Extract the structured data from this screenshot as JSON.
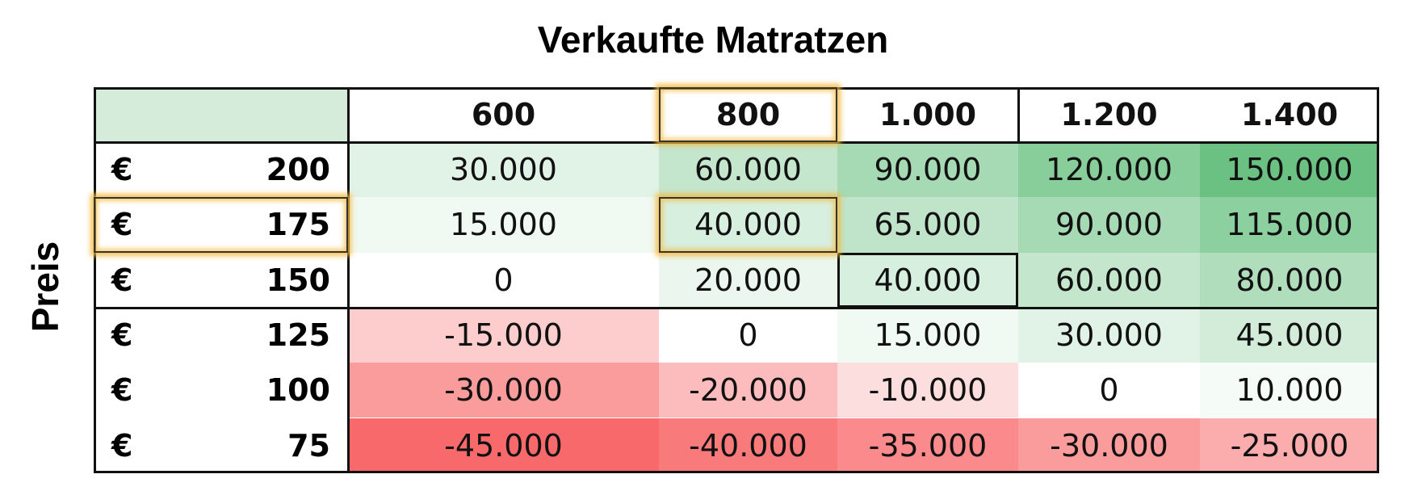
{
  "title": "Verkaufte Matratzen",
  "row_axis_label": "Preis",
  "table": {
    "columns": [
      "600",
      "800",
      "1.000",
      "1.200",
      "1.400"
    ],
    "rows": [
      {
        "currency": "€",
        "price": "200",
        "cells": [
          "30.000",
          "60.000",
          "90.000",
          "120.000",
          "150.000"
        ]
      },
      {
        "currency": "€",
        "price": "175",
        "cells": [
          "15.000",
          "40.000",
          "65.000",
          "90.000",
          "115.000"
        ]
      },
      {
        "currency": "€",
        "price": "150",
        "cells": [
          "0",
          "20.000",
          "40.000",
          "60.000",
          "80.000"
        ]
      },
      {
        "currency": "€",
        "price": "125",
        "cells": [
          "-15.000",
          "0",
          "15.000",
          "30.000",
          "45.000"
        ]
      },
      {
        "currency": "€",
        "price": "100",
        "cells": [
          "-30.000",
          "-20.000",
          "-10.000",
          "0",
          "10.000"
        ]
      },
      {
        "currency": "€",
        "price": "75",
        "cells": [
          "-45.000",
          "-40.000",
          "-35.000",
          "-30.000",
          "-25.000"
        ]
      }
    ]
  }
}
